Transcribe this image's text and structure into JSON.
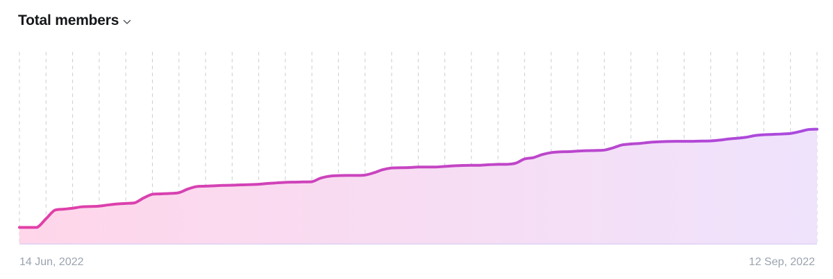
{
  "header": {
    "title": "Total members",
    "dropdown_icon": "chevron-down-icon"
  },
  "chart_data": {
    "type": "area",
    "title": "Total members",
    "x_start_label": "14 Jun, 2022",
    "x_end_label": "12 Sep, 2022",
    "x": [
      "2022-06-14",
      "2022-06-15",
      "2022-06-16",
      "2022-06-17",
      "2022-06-18",
      "2022-06-19",
      "2022-06-20",
      "2022-06-21",
      "2022-06-22",
      "2022-06-23",
      "2022-06-24",
      "2022-06-25",
      "2022-06-26",
      "2022-06-27",
      "2022-06-28",
      "2022-06-29",
      "2022-06-30",
      "2022-07-01",
      "2022-07-02",
      "2022-07-03",
      "2022-07-04",
      "2022-07-05",
      "2022-07-06",
      "2022-07-07",
      "2022-07-08",
      "2022-07-09",
      "2022-07-10",
      "2022-07-11",
      "2022-07-12",
      "2022-07-13",
      "2022-07-14",
      "2022-07-15",
      "2022-07-16",
      "2022-07-17",
      "2022-07-18",
      "2022-07-19",
      "2022-07-20",
      "2022-07-21",
      "2022-07-22",
      "2022-07-23",
      "2022-07-24",
      "2022-07-25",
      "2022-07-26",
      "2022-07-27",
      "2022-07-28",
      "2022-07-29",
      "2022-07-30",
      "2022-07-31",
      "2022-08-01",
      "2022-08-02",
      "2022-08-03",
      "2022-08-04",
      "2022-08-05",
      "2022-08-06",
      "2022-08-07",
      "2022-08-08",
      "2022-08-09",
      "2022-08-10",
      "2022-08-11",
      "2022-08-12",
      "2022-08-13",
      "2022-08-14",
      "2022-08-15",
      "2022-08-16",
      "2022-08-17",
      "2022-08-18",
      "2022-08-19",
      "2022-08-20",
      "2022-08-21",
      "2022-08-22",
      "2022-08-23",
      "2022-08-24",
      "2022-08-25",
      "2022-08-26",
      "2022-08-27",
      "2022-08-28",
      "2022-08-29",
      "2022-08-30",
      "2022-08-31",
      "2022-09-01",
      "2022-09-02",
      "2022-09-03",
      "2022-09-04",
      "2022-09-05",
      "2022-09-06",
      "2022-09-07",
      "2022-09-08",
      "2022-09-09",
      "2022-09-10",
      "2022-09-11",
      "2022-09-12"
    ],
    "values": [
      8.5,
      8.5,
      8.5,
      13,
      17.5,
      18,
      18.5,
      19.2,
      19.4,
      19.6,
      20.2,
      20.7,
      21,
      21.3,
      23.8,
      25.8,
      26,
      26.2,
      26.6,
      28.5,
      29.8,
      30,
      30.2,
      30.4,
      30.5,
      30.7,
      30.8,
      31.0,
      31.4,
      31.7,
      32.0,
      32.1,
      32.2,
      32.3,
      34.2,
      35.2,
      35.5,
      35.6,
      35.6,
      35.8,
      37.0,
      38.6,
      39.5,
      39.6,
      39.7,
      40.0,
      40.0,
      40.0,
      40.3,
      40.6,
      40.8,
      40.9,
      40.9,
      41.2,
      41.4,
      41.4,
      42.0,
      44.2,
      44.9,
      46.5,
      47.5,
      47.9,
      48.0,
      48.3,
      48.5,
      48.6,
      48.8,
      50.0,
      51.5,
      52.0,
      52.3,
      52.8,
      53.1,
      53.3,
      53.4,
      53.4,
      53.4,
      53.5,
      53.6,
      54.0,
      54.6,
      55.0,
      55.5,
      56.4,
      56.8,
      57.0,
      57.2,
      57.5,
      58.4,
      59.5,
      59.7
    ],
    "ylim": [
      0,
      100
    ],
    "grid": "vertical-dashed",
    "colors": {
      "line_start": "#e23fa6",
      "line_end": "#a94ade",
      "fill_start": "#ffd6ea",
      "fill_end": "#efe3fc",
      "grid": "#c9cdd4",
      "baseline": "#dcd2f2",
      "axis_label": "#9aa3ae"
    }
  }
}
